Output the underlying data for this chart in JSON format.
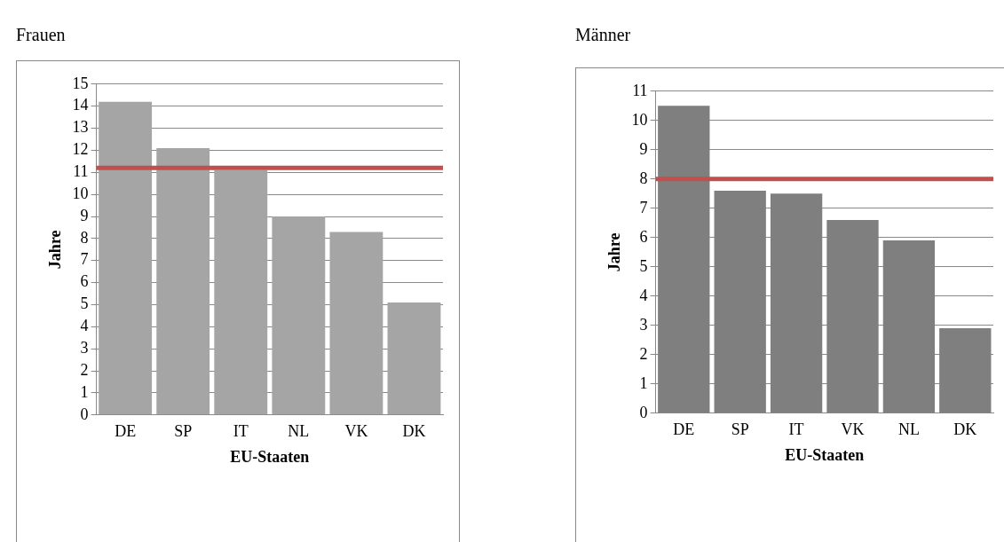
{
  "chart_data": [
    {
      "type": "bar",
      "title": "Frauen",
      "xlabel": "EU-Staaten",
      "ylabel": "Jahre",
      "categories": [
        "DE",
        "SP",
        "IT",
        "NL",
        "VK",
        "DK"
      ],
      "values": [
        14.2,
        12.1,
        11.1,
        9.0,
        8.3,
        5.1
      ],
      "color": "#a5a5a5",
      "ylim": [
        0,
        15
      ],
      "yticks": [
        0,
        1,
        2,
        3,
        4,
        5,
        6,
        7,
        8,
        9,
        10,
        11,
        12,
        13,
        14,
        15
      ],
      "grid": "y",
      "ref_lines": [
        {
          "axis": "y",
          "value": 11.2,
          "color": "#c0504d"
        }
      ]
    },
    {
      "type": "bar",
      "title": "Männer",
      "xlabel": "EU-Staaten",
      "ylabel": "Jahre",
      "categories": [
        "DE",
        "SP",
        "IT",
        "VK",
        "NL",
        "DK"
      ],
      "values": [
        10.5,
        7.6,
        7.5,
        6.6,
        5.9,
        2.9
      ],
      "color": "#7f7f7f",
      "ylim": [
        0,
        11
      ],
      "yticks": [
        0,
        1,
        2,
        3,
        4,
        5,
        6,
        7,
        8,
        9,
        10,
        11
      ],
      "grid": "y",
      "ref_lines": [
        {
          "axis": "y",
          "value": 8.0,
          "color": "#c0504d"
        }
      ]
    }
  ]
}
